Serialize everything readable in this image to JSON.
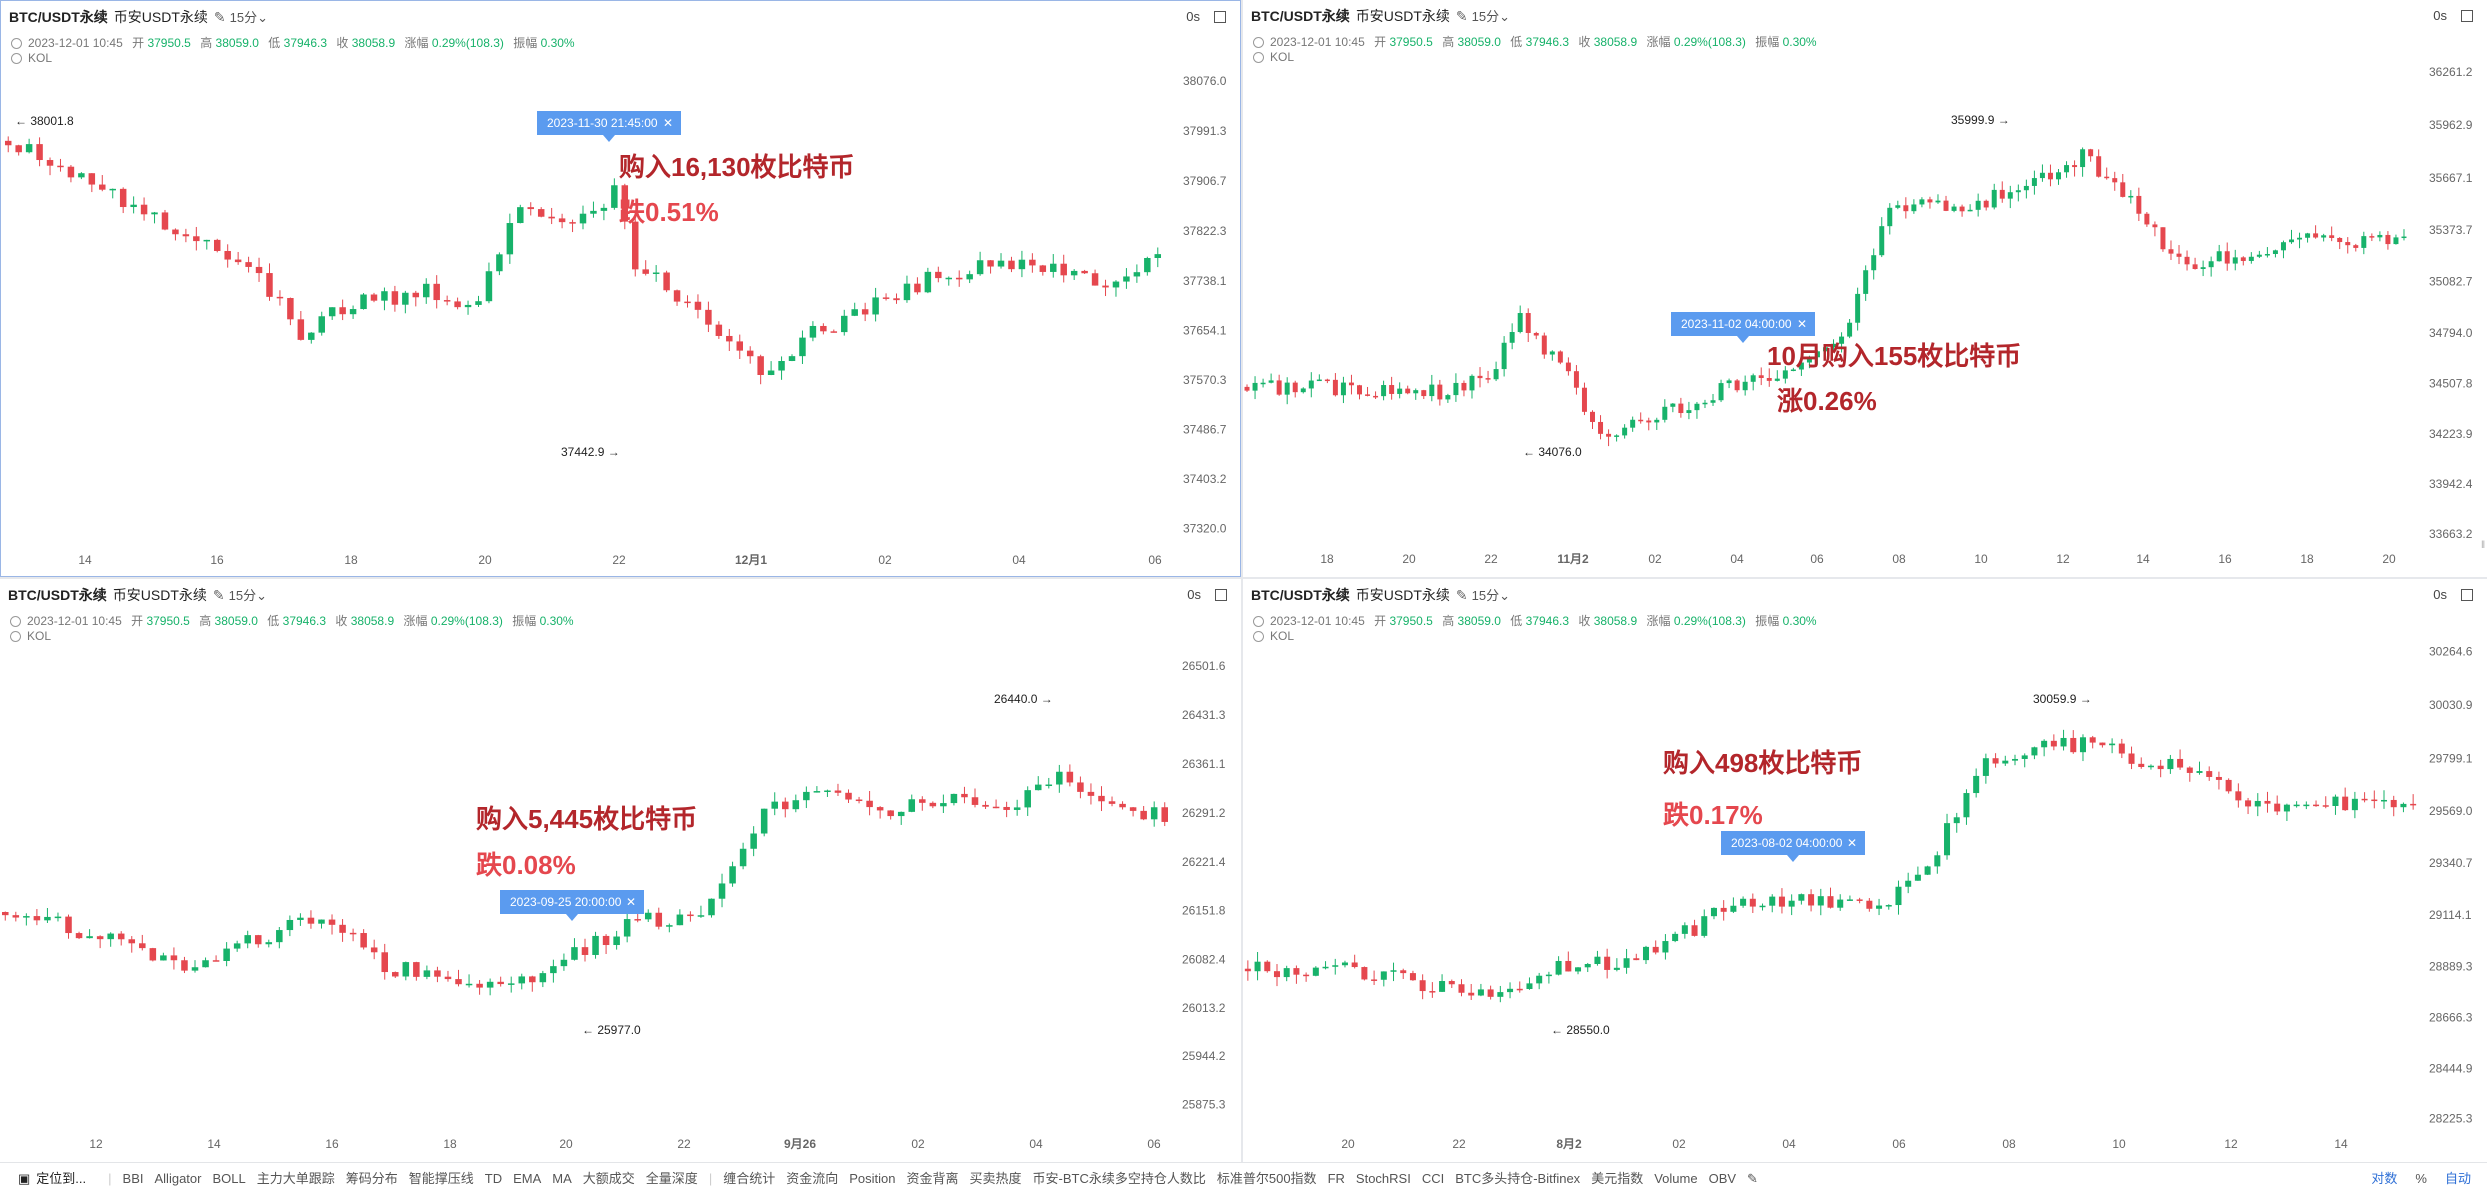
{
  "colors": {
    "up": "#17b26a",
    "down": "#e5474e",
    "annotation": "#b3262b",
    "badge": "#5b9bef"
  },
  "toolbar": {
    "locate": "定位到...",
    "indicators": [
      "BBI",
      "Alligator",
      "BOLL",
      "主力大单跟踪",
      "筹码分布",
      "智能撑压线",
      "TD",
      "EMA",
      "MA",
      "大额成交",
      "全量深度",
      "缠合统计",
      "资金流向",
      "Position",
      "资金背离",
      "买卖热度",
      "币安-BTC永续多空持仓人数比",
      "标准普尔500指数",
      "FR",
      "StochRSI",
      "CCI",
      "BTC多头持仓-Bitfinex",
      "美元指数",
      "Volume",
      "OBV"
    ],
    "right": [
      "对数",
      "%",
      "自动"
    ]
  },
  "panels": [
    {
      "symbol": "BTC/USDT永续",
      "exchange": "币安USDT永续",
      "interval": "15分",
      "countdown": "0s",
      "ohlc": {
        "time": "2023-12-01 10:45",
        "open_label": "开",
        "open": "37950.5",
        "high_label": "高",
        "high": "38059.0",
        "low_label": "低",
        "low": "37946.3",
        "close_label": "收",
        "close": "38058.9",
        "chg_label": "涨幅",
        "chg": "0.29%(108.3)",
        "amp_label": "振幅",
        "amp": "0.30%"
      },
      "kol": "KOL",
      "badge": "2023-11-30 21:45:00",
      "annotation": [
        "购入16,130枚比特币",
        "跌0.51%"
      ],
      "hi_label": "38001.8",
      "lo_label": "37442.9"
    },
    {
      "symbol": "BTC/USDT永续",
      "exchange": "币安USDT永续",
      "interval": "15分",
      "countdown": "0s",
      "ohlc": {
        "time": "2023-12-01 10:45",
        "open_label": "开",
        "open": "37950.5",
        "high_label": "高",
        "high": "38059.0",
        "low_label": "低",
        "low": "37946.3",
        "close_label": "收",
        "close": "38058.9",
        "chg_label": "涨幅",
        "chg": "0.29%(108.3)",
        "amp_label": "振幅",
        "amp": "0.30%"
      },
      "kol": "KOL",
      "badge": "2023-11-02 04:00:00",
      "annotation": [
        "10月购入155枚比特币",
        "涨0.26%"
      ],
      "hi_label": "35999.9",
      "lo_label": "34076.0"
    },
    {
      "symbol": "BTC/USDT永续",
      "exchange": "币安USDT永续",
      "interval": "15分",
      "countdown": "0s",
      "ohlc": {
        "time": "2023-12-01 10:45",
        "open_label": "开",
        "open": "37950.5",
        "high_label": "高",
        "high": "38059.0",
        "low_label": "低",
        "low": "37946.3",
        "close_label": "收",
        "close": "38058.9",
        "chg_label": "涨幅",
        "chg": "0.29%(108.3)",
        "amp_label": "振幅",
        "amp": "0.30%"
      },
      "kol": "KOL",
      "badge": "2023-09-25 20:00:00",
      "annotation": [
        "购入5,445枚比特币",
        "跌0.08%"
      ],
      "hi_label": "26440.0",
      "lo_label": "25977.0"
    },
    {
      "symbol": "BTC/USDT永续",
      "exchange": "币安USDT永续",
      "interval": "15分",
      "countdown": "0s",
      "ohlc": {
        "time": "2023-12-01 10:45",
        "open_label": "开",
        "open": "37950.5",
        "high_label": "高",
        "high": "38059.0",
        "low_label": "低",
        "low": "37946.3",
        "close_label": "收",
        "close": "38058.9",
        "chg_label": "涨幅",
        "chg": "0.29%(108.3)",
        "amp_label": "振幅",
        "amp": "0.30%"
      },
      "kol": "KOL",
      "badge": "2023-08-02 04:00:00",
      "annotation": [
        "购入498枚比特币",
        "跌0.17%"
      ],
      "hi_label": "30059.9",
      "lo_label": "28550.0"
    }
  ],
  "chart_data": [
    {
      "type": "candlestick",
      "ylim": [
        37290,
        38110
      ],
      "yticks": [
        "38076.0",
        "37991.3",
        "37906.7",
        "37822.3",
        "37738.1",
        "37654.1",
        "37570.3",
        "37486.7",
        "37403.2",
        "37320.0"
      ],
      "xticks": [
        "14",
        "16",
        "18",
        "20",
        "22",
        "12月1",
        "02",
        "04",
        "06"
      ],
      "markers": {
        "high": 38001.8,
        "low": 37442.9
      },
      "waypoints": [
        [
          0,
          37975
        ],
        [
          6,
          37920
        ],
        [
          12,
          37860
        ],
        [
          18,
          37810
        ],
        [
          24,
          37740
        ],
        [
          28,
          37650
        ],
        [
          33,
          37700
        ],
        [
          40,
          37720
        ],
        [
          45,
          37700
        ],
        [
          49,
          37870
        ],
        [
          55,
          37840
        ],
        [
          58,
          37890
        ],
        [
          60,
          37770
        ],
        [
          66,
          37690
        ],
        [
          72,
          37580
        ],
        [
          76,
          37640
        ],
        [
          82,
          37690
        ],
        [
          88,
          37740
        ],
        [
          94,
          37770
        ],
        [
          100,
          37760
        ],
        [
          106,
          37730
        ],
        [
          110,
          37790
        ]
      ]
    },
    {
      "type": "candlestick",
      "ylim": [
        33600,
        36330
      ],
      "yticks": [
        "36261.2",
        "35962.9",
        "35667.1",
        "35373.7",
        "35082.7",
        "34794.0",
        "34507.8",
        "34223.9",
        "33942.4",
        "33663.2"
      ],
      "xticks": [
        "18",
        "20",
        "22",
        "11月2",
        "02",
        "04",
        "06",
        "08",
        "10",
        "12",
        "14",
        "16",
        "18",
        "20"
      ],
      "markers": {
        "high": 35999.9,
        "low": 34076.0
      },
      "waypoints": [
        [
          0,
          34490
        ],
        [
          16,
          34480
        ],
        [
          24,
          34460
        ],
        [
          30,
          34540
        ],
        [
          34,
          34880
        ],
        [
          40,
          34550
        ],
        [
          44,
          34200
        ],
        [
          52,
          34350
        ],
        [
          60,
          34500
        ],
        [
          68,
          34600
        ],
        [
          74,
          34750
        ],
        [
          80,
          35500
        ],
        [
          90,
          35500
        ],
        [
          98,
          35650
        ],
        [
          104,
          35780
        ],
        [
          110,
          35550
        ],
        [
          116,
          35180
        ],
        [
          124,
          35230
        ],
        [
          132,
          35330
        ],
        [
          144,
          35310
        ]
      ]
    },
    {
      "type": "candlestick",
      "ylim": [
        25840,
        26540
      ],
      "yticks": [
        "26501.6",
        "26431.3",
        "26361.1",
        "26291.2",
        "26221.4",
        "26151.8",
        "26082.4",
        "26013.2",
        "25944.2",
        "25875.3"
      ],
      "xticks": [
        "12",
        "14",
        "16",
        "18",
        "20",
        "22",
        "9月26",
        "02",
        "04",
        "06"
      ],
      "markers": {
        "high": 26440.0,
        "low": 25977.0
      },
      "waypoints": [
        [
          0,
          26150
        ],
        [
          8,
          26120
        ],
        [
          16,
          26070
        ],
        [
          24,
          26110
        ],
        [
          30,
          26150
        ],
        [
          36,
          26070
        ],
        [
          42,
          26060
        ],
        [
          48,
          26040
        ],
        [
          54,
          26090
        ],
        [
          60,
          26140
        ],
        [
          66,
          26140
        ],
        [
          72,
          26290
        ],
        [
          78,
          26330
        ],
        [
          84,
          26290
        ],
        [
          90,
          26320
        ],
        [
          96,
          26300
        ],
        [
          100,
          26350
        ],
        [
          104,
          26300
        ],
        [
          110,
          26290
        ]
      ]
    },
    {
      "type": "candlestick",
      "ylim": [
        28180,
        30320
      ],
      "yticks": [
        "30264.6",
        "30030.9",
        "29799.1",
        "29569.0",
        "29340.7",
        "29114.1",
        "28889.3",
        "28666.3",
        "28444.9",
        "28225.3"
      ],
      "xticks": [
        "20",
        "22",
        "8月2",
        "02",
        "04",
        "06",
        "08",
        "10",
        "12",
        "14"
      ],
      "markers": {
        "high": 30059.9,
        "low": 28550.0
      },
      "waypoints": [
        [
          0,
          28880
        ],
        [
          12,
          28870
        ],
        [
          20,
          28800
        ],
        [
          28,
          28790
        ],
        [
          32,
          28880
        ],
        [
          40,
          28920
        ],
        [
          46,
          29060
        ],
        [
          50,
          29180
        ],
        [
          58,
          29170
        ],
        [
          66,
          29170
        ],
        [
          70,
          29330
        ],
        [
          76,
          29780
        ],
        [
          82,
          29880
        ],
        [
          88,
          29840
        ],
        [
          96,
          29750
        ],
        [
          104,
          29600
        ],
        [
          112,
          29600
        ],
        [
          120,
          29570
        ]
      ]
    }
  ]
}
